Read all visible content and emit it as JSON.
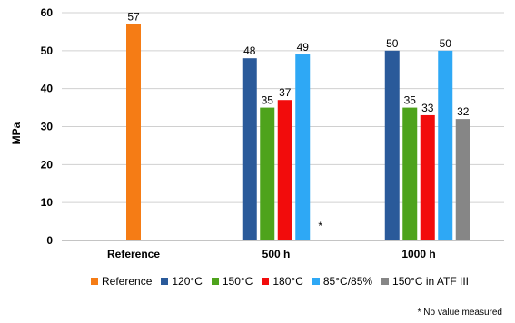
{
  "chart_data": {
    "type": "bar",
    "ylabel": "MPa",
    "ylim": [
      0,
      60
    ],
    "yticks": [
      0,
      10,
      20,
      30,
      40,
      50,
      60
    ],
    "categories": [
      "Reference",
      "500 h",
      "1000 h"
    ],
    "series": [
      {
        "name": "Reference",
        "color": "#f57c15",
        "values": [
          57,
          null,
          null
        ]
      },
      {
        "name": "120°C",
        "color": "#2a5a9a",
        "values": [
          null,
          48,
          50
        ]
      },
      {
        "name": "150°C",
        "color": "#4ea31c",
        "values": [
          null,
          35,
          35
        ]
      },
      {
        "name": "180°C",
        "color": "#f20c0c",
        "values": [
          null,
          37,
          33
        ]
      },
      {
        "name": "85°C/85%",
        "color": "#2ea8f5",
        "values": [
          null,
          49,
          50
        ]
      },
      {
        "name": "150°C in ATF III",
        "color": "#868686",
        "values": [
          null,
          null,
          32
        ]
      }
    ],
    "missing_marker": "*",
    "grid": true,
    "legend": "bottom"
  },
  "footnote": "* No value measured"
}
